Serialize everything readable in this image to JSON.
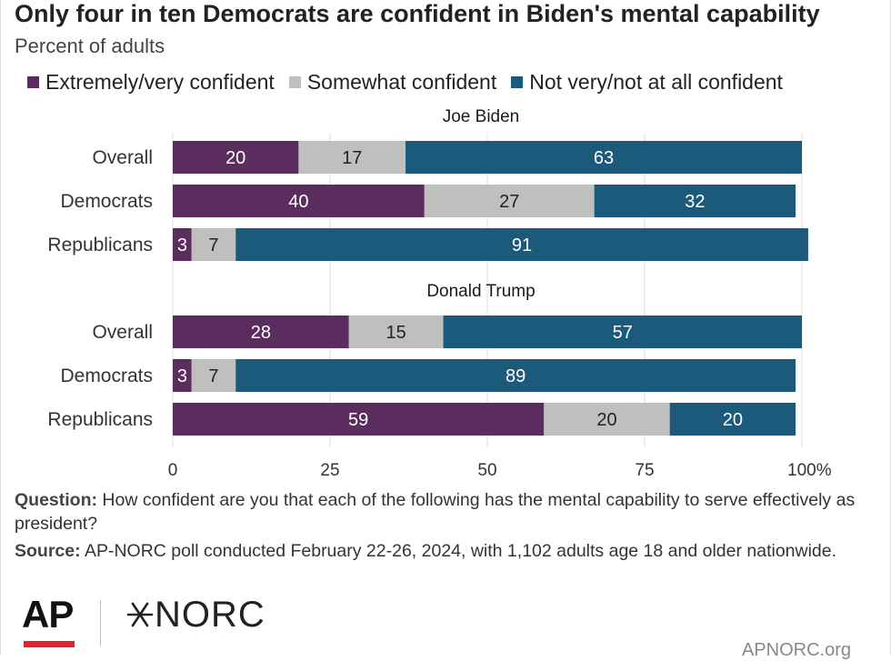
{
  "header": {
    "title": "Only four in ten Democrats are confident in Biden's mental capability",
    "subtitle": "Percent of adults"
  },
  "legend": [
    {
      "label": "Extremely/very confident",
      "color": "#5b2c5e"
    },
    {
      "label": "Somewhat confident",
      "color": "#bfbfbf"
    },
    {
      "label": "Not very/not at all confident",
      "color": "#1b5a7a"
    }
  ],
  "chart_data": {
    "type": "bar",
    "orientation": "horizontal",
    "stacked": true,
    "xlim": [
      0,
      100
    ],
    "xticks": [
      "0",
      "25",
      "50",
      "75",
      "100%"
    ],
    "grid": true,
    "legend_position": "top",
    "series": [
      {
        "name": "Extremely/very confident",
        "color": "#5b2c5e"
      },
      {
        "name": "Somewhat confident",
        "color": "#bfbfbf"
      },
      {
        "name": "Not very/not at all confident",
        "color": "#1b5a7a"
      }
    ],
    "groups": [
      {
        "title": "Joe Biden",
        "rows": [
          {
            "category": "Overall",
            "values": [
              20,
              17,
              63
            ]
          },
          {
            "category": "Democrats",
            "values": [
              40,
              27,
              32
            ]
          },
          {
            "category": "Republicans",
            "values": [
              3,
              7,
              91
            ]
          }
        ]
      },
      {
        "title": "Donald Trump",
        "rows": [
          {
            "category": "Overall",
            "values": [
              28,
              15,
              57
            ]
          },
          {
            "category": "Democrats",
            "values": [
              3,
              7,
              89
            ]
          },
          {
            "category": "Republicans",
            "values": [
              59,
              20,
              20
            ]
          }
        ]
      }
    ]
  },
  "notes": {
    "question_label": "Question:",
    "question_text": " How confident are you that each of the following has the mental capability to serve effectively as president?",
    "source_label": "Source:",
    "source_text": " AP-NORC poll conducted February 22-26, 2024, with 1,102 adults age 18 and older nationwide."
  },
  "footer": {
    "ap_logo": "AP",
    "norc_logo": "NORC",
    "site": "APNORC.org"
  }
}
